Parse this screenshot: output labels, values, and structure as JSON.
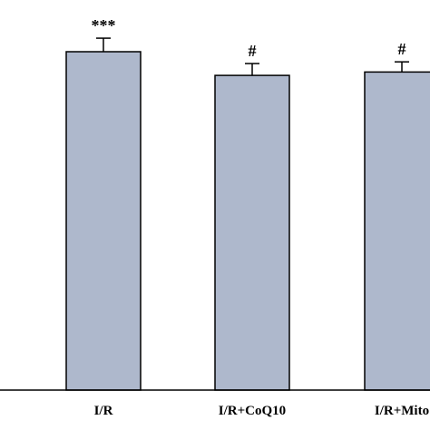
{
  "chart_data": {
    "type": "bar",
    "title": "",
    "xlabel": "",
    "ylabel": "",
    "categories": [
      "I/R",
      "I/R+CoQ10",
      "I/R+Mito"
    ],
    "values": [
      100,
      93,
      94
    ],
    "errors": [
      4,
      3.5,
      3
    ],
    "significance": [
      "***",
      "#",
      "#"
    ],
    "ylim": [
      0,
      100
    ],
    "bar_color": "#aeb8cc",
    "bar_edge_color": "#000000",
    "grid": false,
    "legend": "none"
  }
}
